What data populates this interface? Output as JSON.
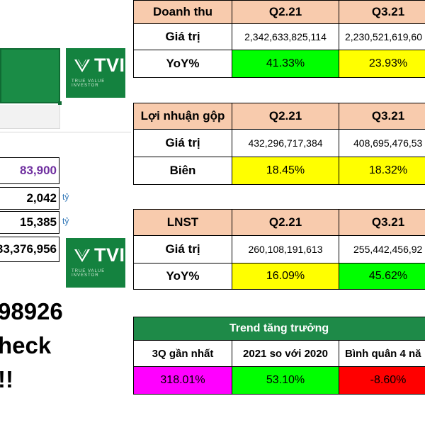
{
  "revenue": {
    "title": "Doanh thu",
    "quarters": [
      "Q2.21",
      "Q3.21"
    ],
    "row_value_label": "Giá trị",
    "values": [
      "2,342,633,825,114",
      "2,230,521,619,60"
    ],
    "row_pct_label": "YoY%",
    "pcts": [
      "41.33%",
      "23.93%"
    ]
  },
  "gross_profit": {
    "title": "Lợi nhuận gộp",
    "quarters": [
      "Q2.21",
      "Q3.21"
    ],
    "row_value_label": "Giá trị",
    "values": [
      "432,296,717,384",
      "408,695,476,53"
    ],
    "row_pct_label": "Biên",
    "pcts": [
      "18.45%",
      "18.32%"
    ]
  },
  "net_profit": {
    "title": "LNST",
    "quarters": [
      "Q2.21",
      "Q3.21"
    ],
    "row_value_label": "Giá trị",
    "values": [
      "260,108,191,613",
      "255,442,456,92"
    ],
    "row_pct_label": "YoY%",
    "pcts": [
      "16.09%",
      "45.62%"
    ]
  },
  "trend": {
    "title": "Trend tăng trưởng",
    "labels": [
      "3Q gần nhất",
      "2021 so với 2020",
      "Bình quân 4 nă"
    ],
    "values": [
      "318.01%",
      "53.10%",
      "-8.60%"
    ]
  },
  "left_panel": {
    "price": "83,900",
    "row2": "2,042",
    "row3": "15,385",
    "row4": "33,376,956",
    "unit": "tỷ",
    "big_line1": "98926",
    "big_line2": "heck",
    "big_line3": "!!"
  },
  "logo": {
    "text": "TVI",
    "subtext": "TRUE VALUE INVESTOR"
  },
  "colors": {
    "header_peach": "#f8cbad",
    "green": "#00ff00",
    "yellow": "#ffff00",
    "magenta": "#ff00ff",
    "red": "#ff0000",
    "trend_green": "#1e8a48",
    "brand_green": "#14823f",
    "price_purple": "#7030a0"
  }
}
